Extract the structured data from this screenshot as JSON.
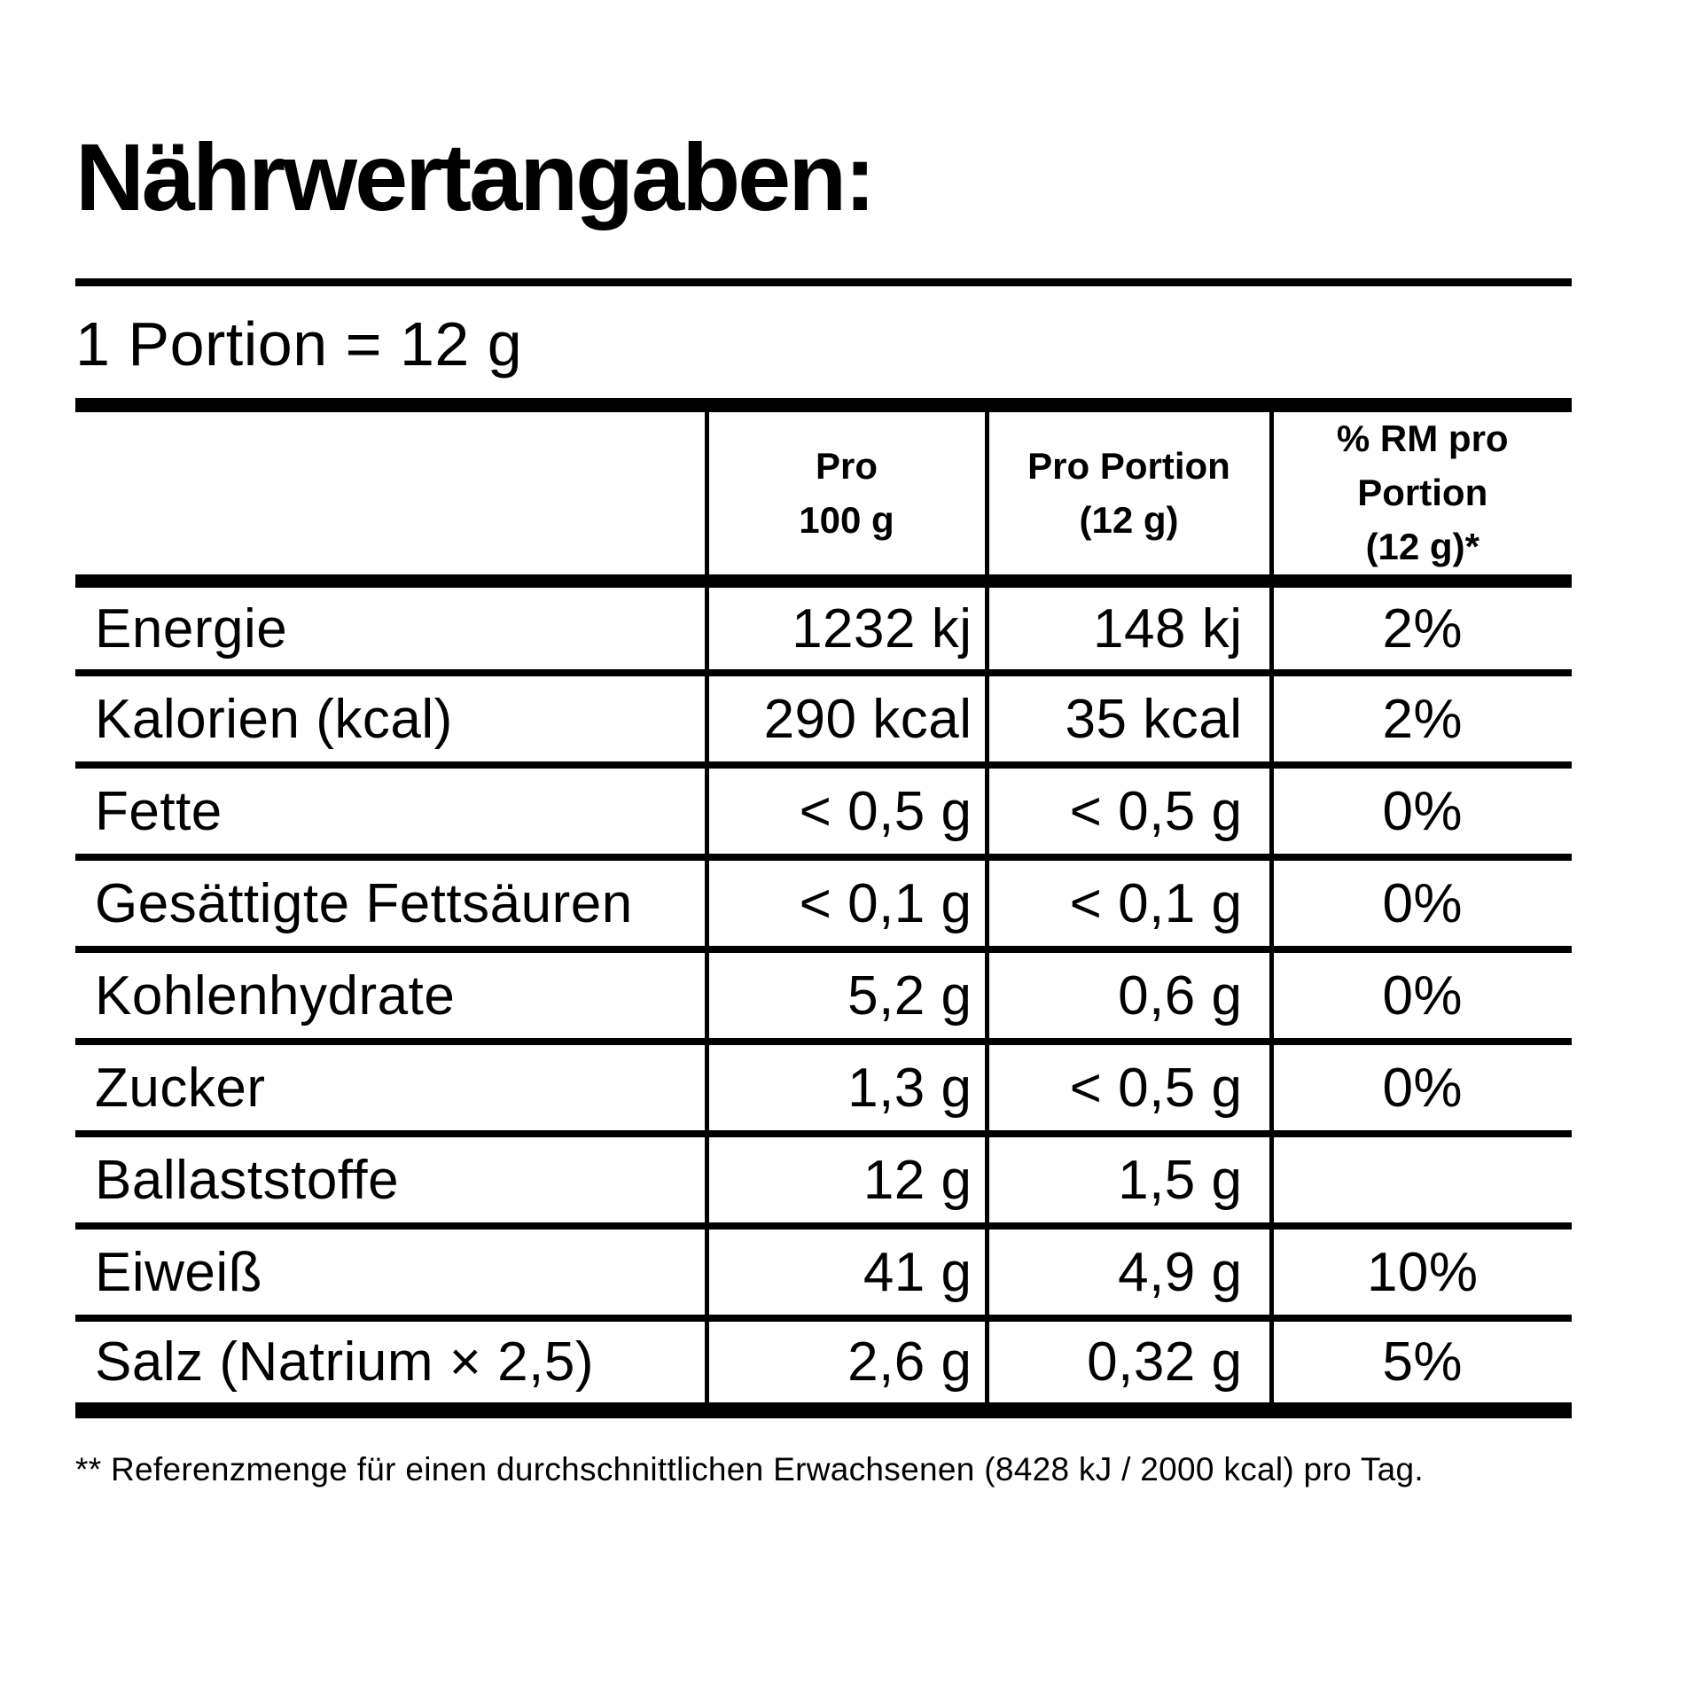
{
  "title": "Nährwertangaben:",
  "portion_line": "1 Portion = 12 g",
  "table": {
    "header": {
      "nutrient": "",
      "per_100g": [
        "Pro",
        "100 g"
      ],
      "per_portion": [
        "Pro Portion",
        "(12 g)"
      ],
      "rm": [
        "% RM pro",
        "Portion",
        "(12 g)*"
      ]
    },
    "rows": [
      {
        "label": "Energie",
        "per_100g": "1232 kj",
        "per_portion": "148 kj",
        "rm": "2%"
      },
      {
        "label": "Kalorien (kcal)",
        "per_100g": "290 kcal",
        "per_portion": "35 kcal",
        "rm": "2%"
      },
      {
        "label": "Fette",
        "per_100g": "< 0,5 g",
        "per_portion": "< 0,5 g",
        "rm": "0%"
      },
      {
        "label": "Gesättigte Fettsäuren",
        "per_100g": "< 0,1 g",
        "per_portion": "< 0,1 g",
        "rm": "0%"
      },
      {
        "label": "Kohlenhydrate",
        "per_100g": "5,2 g",
        "per_portion": "0,6 g",
        "rm": "0%"
      },
      {
        "label": "Zucker",
        "per_100g": "1,3 g",
        "per_portion": "< 0,5 g",
        "rm": "0%"
      },
      {
        "label": "Ballaststoffe",
        "per_100g": "12 g",
        "per_portion": "1,5 g",
        "rm": ""
      },
      {
        "label": "Eiweiß",
        "per_100g": "41 g",
        "per_portion": "4,9 g",
        "rm": "10%"
      },
      {
        "label": "Salz (Natrium × 2,5)",
        "per_100g": "2,6 g",
        "per_portion": "0,32 g",
        "rm": "5%"
      }
    ]
  },
  "footnote": "** Referenzmenge für einen durchschnittlichen Erwachsenen (8428 kJ / 2000 kcal) pro Tag.",
  "colors": {
    "text": "#000000",
    "background": "#ffffff",
    "rule": "#000000"
  }
}
